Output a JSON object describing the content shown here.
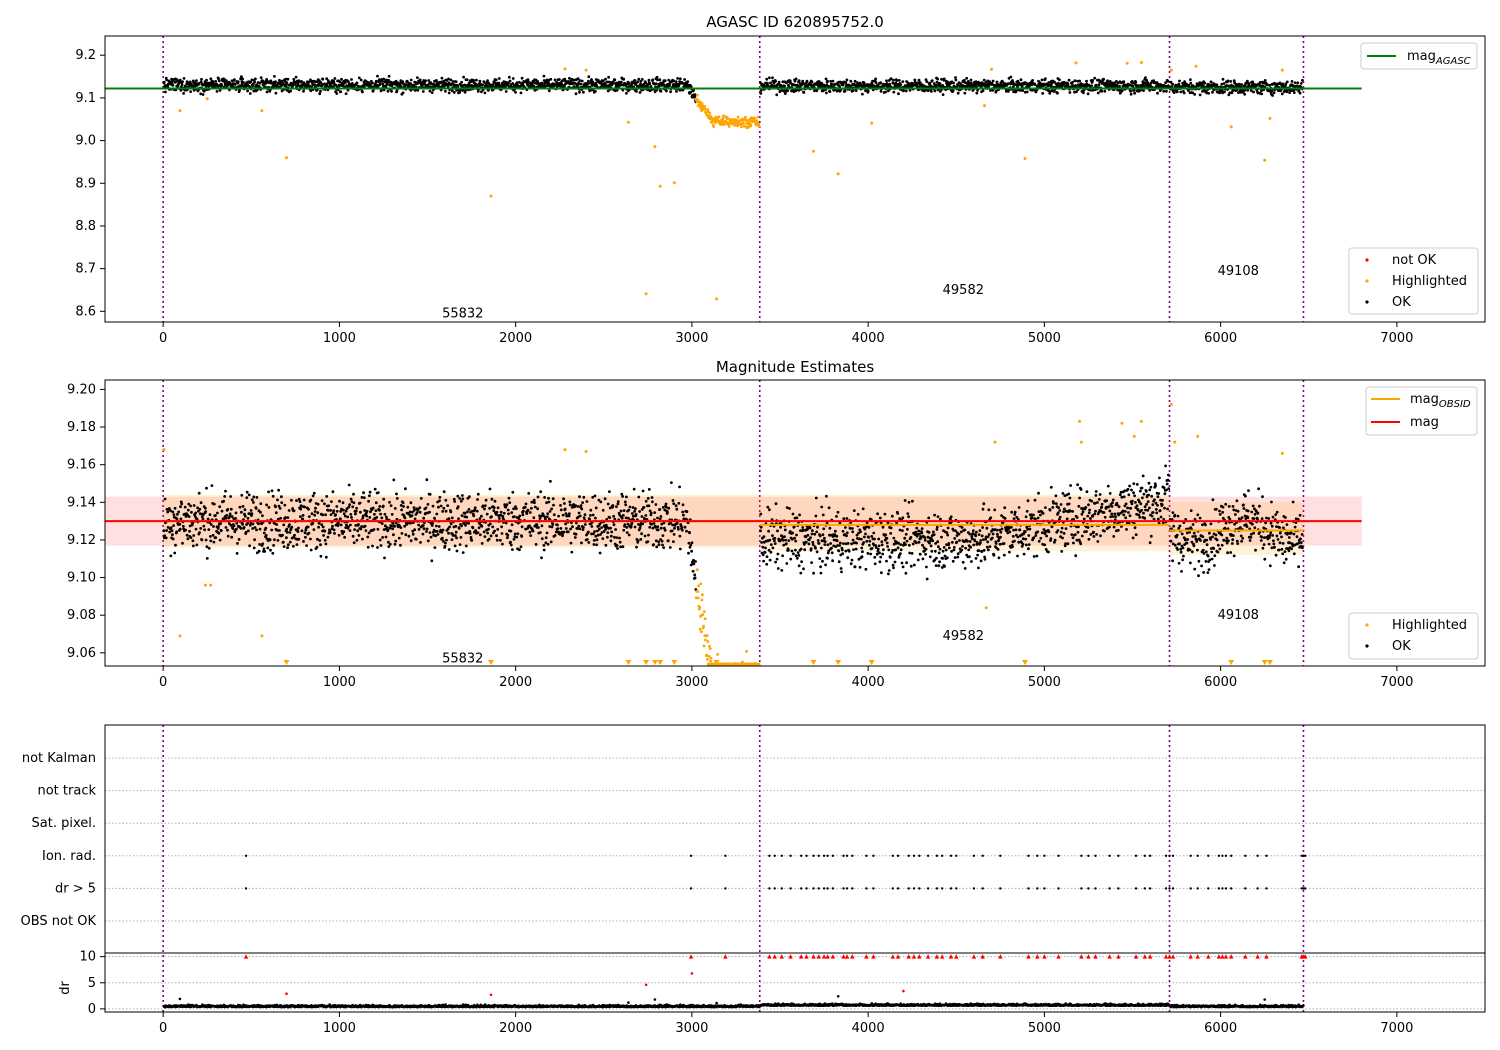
{
  "chart_data": [
    {
      "type": "scatter",
      "title": "AGASC ID 620895752.0",
      "xlim": [
        -330,
        7500
      ],
      "ylim": [
        8.575,
        9.245
      ],
      "xticks": [
        0,
        1000,
        2000,
        3000,
        4000,
        5000,
        6000,
        7000
      ],
      "yticks": [
        8.6,
        8.7,
        8.8,
        8.9,
        9.0,
        9.1,
        9.2
      ],
      "grid": false,
      "vlines": [
        0,
        3385,
        5710,
        6470
      ],
      "hline": {
        "name": "mag",
        "subscript": "AGASC",
        "value": 9.122,
        "color": "#008000",
        "x": [
          -330,
          6800
        ]
      },
      "segments": [
        {
          "start": 0,
          "end": 3385,
          "mean": 9.13,
          "label": "55832",
          "label_pos": [
            1700,
            8.595
          ],
          "dip": {
            "start": 2970,
            "depth": 0.085
          }
        },
        {
          "start": 3385,
          "end": 5710,
          "mean": 9.128,
          "label": "49582",
          "label_pos": [
            4540,
            8.65
          ],
          "dip": null
        },
        {
          "start": 5710,
          "end": 6470,
          "mean": 9.125,
          "label": "49108",
          "label_pos": [
            6100,
            8.695
          ],
          "dip": null
        }
      ],
      "outliers": [
        [
          95,
          9.07
        ],
        [
          250,
          9.098
        ],
        [
          560,
          9.07
        ],
        [
          700,
          8.96
        ],
        [
          1860,
          8.87
        ],
        [
          2280,
          9.168
        ],
        [
          2400,
          9.165
        ],
        [
          2640,
          9.043
        ],
        [
          2740,
          8.641
        ],
        [
          2790,
          8.986
        ],
        [
          2820,
          8.893
        ],
        [
          2900,
          8.901
        ],
        [
          3140,
          8.629
        ],
        [
          3690,
          8.975
        ],
        [
          3830,
          8.922
        ],
        [
          4020,
          9.041
        ],
        [
          4660,
          9.082
        ],
        [
          4700,
          9.167
        ],
        [
          4890,
          8.958
        ],
        [
          5180,
          9.182
        ],
        [
          5470,
          9.181
        ],
        [
          5550,
          9.183
        ],
        [
          5720,
          9.165
        ],
        [
          5860,
          9.174
        ],
        [
          6060,
          9.032
        ],
        [
          6250,
          8.954
        ],
        [
          6280,
          9.052
        ],
        [
          6350,
          9.165
        ]
      ],
      "legend": {
        "position": "lower-right",
        "entries": [
          {
            "label": "not OK",
            "color": "#ff0000"
          },
          {
            "label": "Highlighted",
            "color": "#ffa500"
          },
          {
            "label": "OK",
            "color": "#000000"
          }
        ]
      }
    },
    {
      "type": "scatter",
      "title": "Magnitude Estimates",
      "xlim": [
        -330,
        7500
      ],
      "ylim": [
        9.053,
        9.205
      ],
      "xticks": [
        0,
        1000,
        2000,
        3000,
        4000,
        5000,
        6000,
        7000
      ],
      "yticks": [
        9.06,
        9.08,
        9.1,
        9.12,
        9.14,
        9.16,
        9.18,
        9.2
      ],
      "grid": false,
      "vlines": [
        0,
        3385,
        5710,
        6470
      ],
      "mag": {
        "value": 9.13,
        "band": [
          9.117,
          9.143
        ],
        "color": "#ff0000",
        "x": [
          -330,
          6800
        ]
      },
      "mag_obsid": [
        {
          "start": 0,
          "end": 3385,
          "value": 9.13,
          "band": [
            9.116,
            9.144
          ]
        },
        {
          "start": 3385,
          "end": 5710,
          "value": 9.128,
          "band": [
            9.114,
            9.144
          ]
        },
        {
          "start": 5710,
          "end": 6470,
          "value": 9.125,
          "band": [
            9.112,
            9.14
          ]
        }
      ],
      "segment_labels": [
        {
          "label": "55832",
          "pos": [
            1700,
            9.057
          ]
        },
        {
          "label": "49582",
          "pos": [
            4540,
            9.069
          ]
        },
        {
          "label": "49108",
          "pos": [
            6100,
            9.08
          ]
        }
      ],
      "outliers": [
        [
          5,
          9.168
        ],
        [
          95,
          9.069
        ],
        [
          240,
          9.096
        ],
        [
          270,
          9.096
        ],
        [
          560,
          9.069
        ],
        [
          2280,
          9.168
        ],
        [
          2400,
          9.167
        ],
        [
          4670,
          9.084
        ],
        [
          4720,
          9.172
        ],
        [
          5200,
          9.183
        ],
        [
          5210,
          9.172
        ],
        [
          5440,
          9.182
        ],
        [
          5510,
          9.175
        ],
        [
          5550,
          9.183
        ],
        [
          5720,
          9.192
        ],
        [
          5740,
          9.172
        ],
        [
          5870,
          9.175
        ],
        [
          6350,
          9.166
        ]
      ],
      "below_range_markers": [
        700,
        1860,
        2640,
        2740,
        2790,
        2820,
        2900,
        3140,
        3690,
        3830,
        4020,
        4890,
        6060,
        6250,
        6280
      ],
      "legend_top": {
        "position": "upper-right",
        "entries": [
          {
            "label": "mag",
            "subscript": "OBSID",
            "color": "#ffa500"
          },
          {
            "label": "mag",
            "subscript": "",
            "color": "#ff0000"
          }
        ]
      },
      "legend_bottom": {
        "position": "lower-right",
        "entries": [
          {
            "label": "Highlighted",
            "color": "#ffa500"
          },
          {
            "label": "OK",
            "color": "#000000"
          }
        ]
      }
    },
    {
      "type": "scatter",
      "title": "",
      "xlim": [
        -330,
        7500
      ],
      "xticks": [
        0,
        1000,
        2000,
        3000,
        4000,
        5000,
        6000,
        7000
      ],
      "vlines": [
        0,
        3385,
        5710,
        6470
      ],
      "flag_rows": [
        "not Kalman",
        "not track",
        "Sat. pixel.",
        "Ion. rad.",
        "dr > 5",
        "OBS not OK"
      ],
      "flag_events": [
        470,
        2995,
        3190,
        3440,
        3470,
        3510,
        3560,
        3620,
        3650,
        3690,
        3720,
        3750,
        3770,
        3800,
        3860,
        3880,
        3910,
        3990,
        4030,
        4140,
        4170,
        4230,
        4260,
        4290,
        4340,
        4390,
        4420,
        4470,
        4500,
        4600,
        4650,
        4750,
        4910,
        4960,
        5000,
        5080,
        5210,
        5250,
        5290,
        5370,
        5420,
        5520,
        5570,
        5600,
        5690,
        5710,
        5730,
        5830,
        5870,
        5930,
        5990,
        6010,
        6030,
        6060,
        6140,
        6210,
        6260,
        6460,
        6470,
        6480
      ],
      "dr": {
        "ylabel": "dr",
        "ylim": [
          -0.6,
          10.7
        ],
        "yticks": [
          0,
          5,
          10
        ],
        "clip": 10,
        "baseline_mean": 0.35,
        "outliers": [
          [
            95,
            1.9
          ],
          [
            700,
            2.9
          ],
          [
            1860,
            2.7
          ],
          [
            2640,
            1.2
          ],
          [
            2740,
            4.6
          ],
          [
            2790,
            1.8
          ],
          [
            3000,
            6.8
          ],
          [
            3140,
            1.1
          ],
          [
            3830,
            2.4
          ],
          [
            4200,
            3.4
          ],
          [
            6250,
            1.8
          ]
        ]
      }
    }
  ]
}
